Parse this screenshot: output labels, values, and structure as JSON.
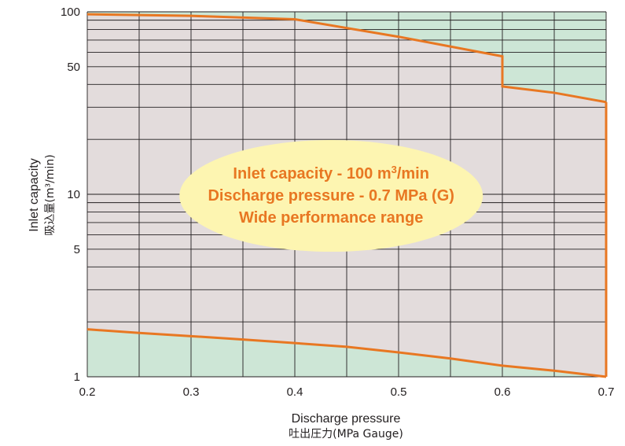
{
  "chart_data": {
    "type": "area",
    "title": "",
    "x": [
      0.2,
      0.25,
      0.3,
      0.35,
      0.4,
      0.45,
      0.5,
      0.55,
      0.6,
      0.65,
      0.7
    ],
    "xlim": [
      0.2,
      0.7
    ],
    "ylim": [
      1,
      100
    ],
    "yscale": "log",
    "x_tick_labels": [
      "0.2",
      "0.3",
      "0.4",
      "0.5",
      "0.6",
      "0.7"
    ],
    "x_tick_values": [
      0.2,
      0.3,
      0.4,
      0.5,
      0.6,
      0.7
    ],
    "y_tick_labels": [
      "1",
      "5",
      "10",
      "50",
      "100"
    ],
    "y_tick_values": [
      1,
      5,
      10,
      50,
      100
    ],
    "xlabel": "Discharge pressure",
    "xlabel_sub": "吐出圧力(MPa Gauge)",
    "ylabel": "Inlet capacity",
    "ylabel_sub": "吸込量(m³/min)",
    "grid": true,
    "series": [
      {
        "role": "upper-boundary",
        "points": [
          [
            0.2,
            97
          ],
          [
            0.3,
            95
          ],
          [
            0.4,
            91
          ],
          [
            0.5,
            73
          ],
          [
            0.6,
            57
          ],
          [
            0.6,
            39
          ],
          [
            0.65,
            36
          ],
          [
            0.7,
            32
          ]
        ]
      },
      {
        "role": "lower-boundary",
        "points": [
          [
            0.2,
            1.82
          ],
          [
            0.25,
            1.74
          ],
          [
            0.3,
            1.67
          ],
          [
            0.35,
            1.6
          ],
          [
            0.4,
            1.53
          ],
          [
            0.45,
            1.46
          ],
          [
            0.5,
            1.36
          ],
          [
            0.55,
            1.26
          ],
          [
            0.6,
            1.15
          ],
          [
            0.65,
            1.08
          ],
          [
            0.7,
            1.0
          ]
        ]
      }
    ],
    "annotations": [
      {
        "lines": [
          {
            "before": "Inlet capacity - 100 m",
            "sup": "3",
            "after": "/min"
          },
          {
            "text": "Discharge pressure - 0.7 MPa (G)"
          },
          {
            "text": "Wide performance range"
          }
        ],
        "center": [
          0.435,
          9.8
        ]
      }
    ],
    "colors": {
      "range_fill": "#e3dcdc",
      "outside_fill": "#cde6d6",
      "boundary": "#e87722",
      "grid": "#231f20",
      "callout_fill": "#fdf5b1",
      "callout_text": "#e87722"
    }
  }
}
